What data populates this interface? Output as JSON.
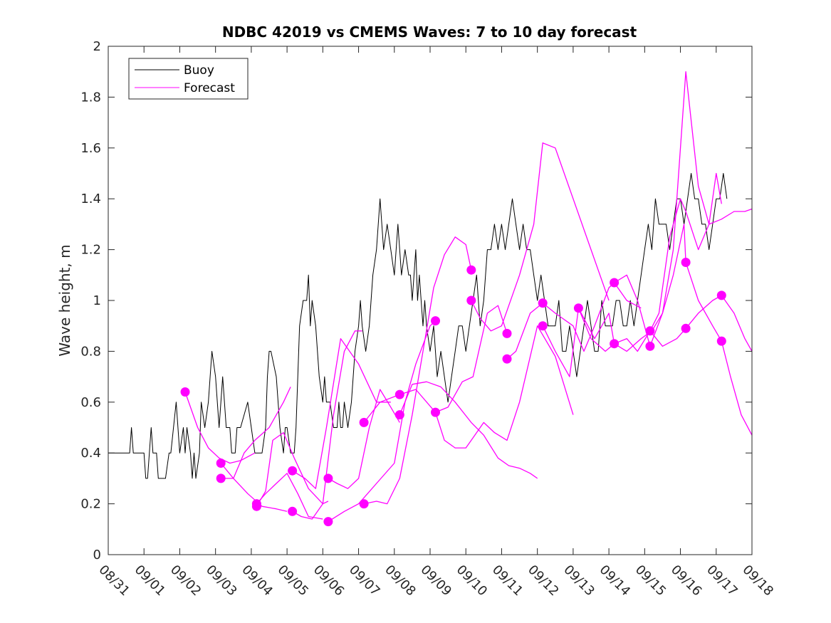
{
  "chart_data": {
    "type": "line",
    "title": "NDBC 42019 vs CMEMS Waves: 7 to 10 day forecast",
    "xlabel": "",
    "ylabel": "Wave height, m",
    "xlim": [
      0,
      18
    ],
    "ylim": [
      0,
      2
    ],
    "x_tick_values": [
      0,
      1,
      2,
      3,
      4,
      5,
      6,
      7,
      8,
      9,
      10,
      11,
      12,
      13,
      14,
      15,
      16,
      17,
      18
    ],
    "x_tick_labels": [
      "08/31",
      "09/01",
      "09/02",
      "09/03",
      "09/04",
      "09/05",
      "09/06",
      "09/07",
      "09/08",
      "09/09",
      "09/10",
      "09/11",
      "09/12",
      "09/13",
      "09/14",
      "09/15",
      "09/16",
      "09/17",
      "09/18"
    ],
    "y_tick_values": [
      0,
      0.2,
      0.4,
      0.6,
      0.8,
      1,
      1.2,
      1.4,
      1.6,
      1.8,
      2
    ],
    "y_tick_labels": [
      "0",
      "0.2",
      "0.4",
      "0.6",
      "0.8",
      "1",
      "1.2",
      "1.4",
      "1.6",
      "1.8",
      "2"
    ],
    "legend": {
      "position": "top-left",
      "entries": [
        {
          "label": "Buoy",
          "color": "#000000"
        },
        {
          "label": "Forecast",
          "color": "#ff00ff"
        }
      ]
    },
    "colors": {
      "buoy": "#000000",
      "forecast": "#ff00ff",
      "axes": "#262626"
    },
    "series": [
      {
        "name": "Buoy",
        "color": "#000000",
        "x": [
          0,
          0.3,
          0.6,
          0.65,
          0.7,
          0.75,
          1.0,
          1.05,
          1.1,
          1.2,
          1.25,
          1.35,
          1.4,
          1.45,
          1.6,
          1.7,
          1.75,
          1.9,
          2.0,
          2.1,
          2.15,
          2.2,
          2.3,
          2.35,
          2.4,
          2.45,
          2.55,
          2.6,
          2.7,
          2.8,
          2.85,
          2.9,
          3.0,
          3.05,
          3.1,
          3.15,
          3.2,
          3.25,
          3.3,
          3.35,
          3.4,
          3.45,
          3.5,
          3.55,
          3.6,
          3.65,
          3.7,
          3.9,
          4.0,
          4.1,
          4.2,
          4.3,
          4.4,
          4.45,
          4.5,
          4.55,
          4.7,
          4.8,
          4.9,
          4.95,
          5.0,
          5.1,
          5.2,
          5.25,
          5.3,
          5.35,
          5.45,
          5.55,
          5.6,
          5.65,
          5.7,
          5.8,
          5.9,
          6.0,
          6.05,
          6.1,
          6.2,
          6.3,
          6.4,
          6.45,
          6.5,
          6.55,
          6.6,
          6.7,
          6.8,
          6.9,
          7.0,
          7.05,
          7.1,
          7.2,
          7.3,
          7.4,
          7.5,
          7.55,
          7.6,
          7.7,
          7.8,
          7.9,
          8.0,
          8.1,
          8.2,
          8.3,
          8.4,
          8.45,
          8.5,
          8.55,
          8.6,
          8.65,
          8.7,
          8.75,
          8.8,
          8.85,
          8.9,
          9.0,
          9.1,
          9.15,
          9.2,
          9.3,
          9.4,
          9.5,
          9.6,
          9.7,
          9.8,
          9.9,
          10.0,
          10.1,
          10.2,
          10.3,
          10.4,
          10.5,
          10.6,
          10.7,
          10.8,
          10.9,
          11.0,
          11.1,
          11.2,
          11.3,
          11.4,
          11.5,
          11.6,
          11.7,
          11.8,
          11.9,
          12.0,
          12.1,
          12.2,
          12.3,
          12.4,
          12.5,
          12.6,
          12.7,
          12.8,
          12.9,
          13.0,
          13.1,
          13.2,
          13.3,
          13.4,
          13.5,
          13.6,
          13.7,
          13.8,
          13.9,
          14.0,
          14.1,
          14.2,
          14.3,
          14.4,
          14.5,
          14.6,
          14.7,
          14.8,
          14.9,
          15.0,
          15.1,
          15.2,
          15.3,
          15.4,
          15.5,
          15.6,
          15.7,
          15.8,
          15.9,
          16.0,
          16.1,
          16.2,
          16.3,
          16.4,
          16.5,
          16.6,
          16.7,
          16.8,
          16.9,
          17.0,
          17.1,
          17.2,
          17.3
        ],
        "y": [
          0.4,
          0.4,
          0.4,
          0.5,
          0.4,
          0.4,
          0.4,
          0.3,
          0.3,
          0.5,
          0.4,
          0.4,
          0.3,
          0.3,
          0.3,
          0.4,
          0.4,
          0.6,
          0.4,
          0.5,
          0.4,
          0.5,
          0.4,
          0.3,
          0.4,
          0.3,
          0.4,
          0.6,
          0.5,
          0.6,
          0.7,
          0.8,
          0.7,
          0.6,
          0.5,
          0.6,
          0.7,
          0.6,
          0.5,
          0.5,
          0.5,
          0.4,
          0.4,
          0.4,
          0.5,
          0.5,
          0.5,
          0.6,
          0.5,
          0.4,
          0.4,
          0.4,
          0.5,
          0.7,
          0.8,
          0.8,
          0.7,
          0.5,
          0.4,
          0.5,
          0.5,
          0.4,
          0.4,
          0.5,
          0.7,
          0.9,
          1.0,
          1.0,
          1.1,
          0.9,
          1.0,
          0.9,
          0.7,
          0.6,
          0.7,
          0.6,
          0.6,
          0.5,
          0.5,
          0.6,
          0.5,
          0.5,
          0.6,
          0.5,
          0.6,
          0.8,
          0.9,
          1.0,
          0.9,
          0.8,
          0.9,
          1.1,
          1.2,
          1.3,
          1.4,
          1.2,
          1.3,
          1.2,
          1.1,
          1.3,
          1.1,
          1.2,
          1.1,
          1.1,
          1.0,
          1.1,
          1.2,
          1.0,
          1.1,
          1.0,
          0.9,
          1.0,
          0.9,
          0.8,
          0.9,
          0.8,
          0.7,
          0.8,
          0.7,
          0.6,
          0.7,
          0.8,
          0.9,
          0.9,
          0.8,
          0.9,
          1.0,
          1.1,
          0.9,
          1.0,
          1.2,
          1.2,
          1.3,
          1.2,
          1.3,
          1.2,
          1.3,
          1.4,
          1.3,
          1.2,
          1.3,
          1.2,
          1.2,
          1.1,
          1.0,
          1.1,
          1.0,
          0.9,
          0.9,
          0.9,
          1.0,
          0.8,
          0.8,
          0.9,
          0.8,
          0.7,
          0.8,
          0.9,
          1.0,
          0.9,
          0.8,
          0.8,
          1.0,
          0.9,
          0.9,
          0.9,
          1.0,
          1.0,
          0.9,
          0.9,
          1.0,
          0.9,
          1.0,
          1.1,
          1.2,
          1.3,
          1.2,
          1.4,
          1.3,
          1.3,
          1.3,
          1.2,
          1.3,
          1.4,
          1.4,
          1.3,
          1.4,
          1.5,
          1.4,
          1.4,
          1.3,
          1.3,
          1.2,
          1.3,
          1.4,
          1.4,
          1.5,
          1.4
        ]
      },
      {
        "name": "Forecast run 1",
        "color": "#ff00ff",
        "x": [
          2.15,
          2.5,
          2.8,
          3.1,
          3.4,
          3.7,
          4.1
        ],
        "y": [
          0.64,
          0.5,
          0.42,
          0.38,
          0.36,
          0.37,
          0.4
        ]
      },
      {
        "name": "Forecast run 2",
        "color": "#ff00ff",
        "x": [
          3.15,
          3.5,
          3.9,
          4.3,
          4.7,
          5.0
        ],
        "y": [
          0.36,
          0.3,
          0.24,
          0.19,
          0.18,
          0.17
        ]
      },
      {
        "name": "Forecast run 3",
        "color": "#ff00ff",
        "x": [
          3.15,
          3.5,
          3.8,
          4.1,
          4.5,
          4.9,
          5.1
        ],
        "y": [
          0.3,
          0.3,
          0.4,
          0.45,
          0.5,
          0.6,
          0.66
        ]
      },
      {
        "name": "Forecast run 4",
        "color": "#ff00ff",
        "x": [
          4.15,
          4.4,
          4.6,
          4.9,
          5.2,
          5.6,
          6.0,
          6.15
        ],
        "y": [
          0.19,
          0.25,
          0.45,
          0.48,
          0.38,
          0.26,
          0.2,
          0.21
        ]
      },
      {
        "name": "Forecast run 5",
        "color": "#ff00ff",
        "x": [
          4.15,
          4.4,
          4.7,
          5.0,
          5.3,
          5.6,
          6.0
        ],
        "y": [
          0.2,
          0.24,
          0.28,
          0.32,
          0.24,
          0.15,
          0.14
        ]
      },
      {
        "name": "Forecast run 6",
        "color": "#ff00ff",
        "x": [
          5.15,
          5.4,
          5.7,
          6.0,
          6.3,
          6.6,
          6.9,
          7.1
        ],
        "y": [
          0.17,
          0.15,
          0.14,
          0.2,
          0.55,
          0.8,
          0.88,
          0.88
        ]
      },
      {
        "name": "Forecast run 7",
        "color": "#ff00ff",
        "x": [
          5.15,
          5.5,
          5.8,
          6.1,
          6.5,
          7.0,
          7.5,
          7.9
        ],
        "y": [
          0.33,
          0.3,
          0.26,
          0.5,
          0.85,
          0.75,
          0.6,
          0.6
        ]
      },
      {
        "name": "Forecast run 8",
        "color": "#ff00ff",
        "x": [
          6.15,
          6.4,
          6.7,
          7.0,
          7.3,
          7.6,
          7.9,
          8.15
        ],
        "y": [
          0.3,
          0.28,
          0.26,
          0.3,
          0.5,
          0.65,
          0.58,
          0.52
        ]
      },
      {
        "name": "Forecast run 9",
        "color": "#ff00ff",
        "x": [
          6.15,
          6.6,
          7.0,
          7.5,
          8.0,
          8.3,
          8.6,
          9.0,
          9.15
        ],
        "y": [
          0.13,
          0.17,
          0.2,
          0.28,
          0.36,
          0.6,
          0.75,
          0.9,
          0.92
        ]
      },
      {
        "name": "Forecast run 10",
        "color": "#ff00ff",
        "x": [
          7.15,
          7.5,
          7.8,
          8.15,
          8.5,
          8.8,
          9.1,
          9.4,
          9.7,
          10.0,
          10.15
        ],
        "y": [
          0.2,
          0.21,
          0.2,
          0.3,
          0.55,
          0.8,
          1.05,
          1.18,
          1.25,
          1.22,
          1.12
        ]
      },
      {
        "name": "Forecast run 11",
        "color": "#ff00ff",
        "x": [
          7.15,
          7.6,
          8.15,
          8.6,
          9.15,
          9.5,
          9.9,
          10.2,
          10.6,
          10.9,
          11.15
        ],
        "y": [
          0.52,
          0.6,
          0.63,
          0.65,
          0.56,
          0.58,
          0.68,
          0.7,
          0.95,
          0.98,
          0.87
        ]
      },
      {
        "name": "Forecast run 12",
        "color": "#ff00ff",
        "x": [
          8.15,
          8.5,
          8.9,
          9.3,
          9.7,
          10.15,
          10.5,
          10.9,
          11.2,
          11.5,
          11.8,
          12.0
        ],
        "y": [
          0.55,
          0.67,
          0.68,
          0.66,
          0.6,
          0.52,
          0.47,
          0.38,
          0.35,
          0.34,
          0.32,
          0.3
        ]
      },
      {
        "name": "Forecast run 13",
        "color": "#ff00ff",
        "x": [
          9.15,
          9.4,
          9.7,
          10.0,
          10.15,
          10.5,
          10.8,
          11.15,
          11.5,
          12.0,
          12.5,
          13.0
        ],
        "y": [
          0.56,
          0.45,
          0.42,
          0.42,
          0.45,
          0.52,
          0.48,
          0.45,
          0.6,
          0.9,
          0.78,
          0.55
        ]
      },
      {
        "name": "Forecast run 14",
        "color": "#ff00ff",
        "x": [
          10.15,
          10.4,
          10.7,
          11.0,
          11.15,
          11.5,
          11.9,
          12.15,
          12.5,
          13.0,
          13.5,
          14.0
        ],
        "y": [
          1.0,
          0.93,
          0.88,
          0.9,
          0.96,
          1.1,
          1.3,
          1.62,
          1.6,
          1.4,
          1.2,
          1.0
        ]
      },
      {
        "name": "Forecast run 15",
        "color": "#ff00ff",
        "x": [
          11.15,
          11.4,
          11.8,
          12.15,
          12.5,
          13.0,
          13.3,
          13.6,
          14.0,
          14.15,
          14.5,
          14.9
        ],
        "y": [
          0.77,
          0.8,
          0.95,
          0.99,
          0.95,
          0.9,
          0.8,
          0.9,
          1.05,
          1.07,
          1.0,
          0.97
        ]
      },
      {
        "name": "Forecast run 16",
        "color": "#ff00ff",
        "x": [
          12.15,
          12.5,
          12.9,
          13.15,
          13.6,
          14.0,
          14.15,
          14.5,
          14.9,
          15.2,
          15.5,
          15.8,
          16.1,
          16.15
        ],
        "y": [
          0.9,
          0.8,
          0.7,
          0.97,
          0.85,
          0.95,
          0.83,
          0.8,
          0.85,
          0.88,
          0.95,
          1.1,
          1.3,
          1.15
        ]
      },
      {
        "name": "Forecast run 17",
        "color": "#ff00ff",
        "x": [
          13.15,
          13.5,
          13.9,
          14.15,
          14.5,
          14.8,
          15.15,
          15.4,
          15.7,
          16.0,
          16.15,
          16.5,
          16.8,
          17.0,
          17.15
        ],
        "y": [
          0.97,
          0.85,
          0.8,
          0.83,
          0.85,
          0.8,
          0.88,
          0.95,
          1.25,
          1.4,
          1.35,
          1.2,
          1.3,
          1.5,
          1.38
        ]
      },
      {
        "name": "Forecast run 18",
        "color": "#ff00ff",
        "x": [
          14.15,
          14.5,
          14.8,
          15.15,
          15.5,
          15.8,
          16.15,
          16.5,
          16.8,
          17.15,
          17.5,
          17.8,
          18.0
        ],
        "y": [
          1.07,
          1.1,
          1.0,
          0.82,
          0.95,
          1.2,
          1.9,
          1.45,
          1.3,
          1.32,
          1.35,
          1.35,
          1.36
        ]
      },
      {
        "name": "Forecast run 19",
        "color": "#ff00ff",
        "x": [
          15.15,
          15.5,
          15.9,
          16.15,
          16.5,
          16.9,
          17.15,
          17.5,
          17.8,
          18.0
        ],
        "y": [
          0.88,
          0.82,
          0.85,
          0.89,
          0.95,
          1.0,
          1.02,
          0.95,
          0.85,
          0.8
        ]
      },
      {
        "name": "Forecast run 20",
        "color": "#ff00ff",
        "x": [
          16.15,
          16.5,
          16.9,
          17.15,
          17.4,
          17.7,
          18.0
        ],
        "y": [
          1.15,
          1.0,
          0.9,
          0.84,
          0.7,
          0.55,
          0.47
        ]
      }
    ],
    "markers": {
      "name": "Forecast initial points",
      "color": "#ff00ff",
      "points": [
        {
          "x": 2.15,
          "y": 0.64
        },
        {
          "x": 3.15,
          "y": 0.36
        },
        {
          "x": 3.15,
          "y": 0.3
        },
        {
          "x": 4.15,
          "y": 0.2
        },
        {
          "x": 4.15,
          "y": 0.19
        },
        {
          "x": 5.15,
          "y": 0.33
        },
        {
          "x": 5.15,
          "y": 0.17
        },
        {
          "x": 6.15,
          "y": 0.3
        },
        {
          "x": 6.15,
          "y": 0.13
        },
        {
          "x": 7.15,
          "y": 0.52
        },
        {
          "x": 7.15,
          "y": 0.2
        },
        {
          "x": 8.15,
          "y": 0.63
        },
        {
          "x": 8.15,
          "y": 0.55
        },
        {
          "x": 9.15,
          "y": 0.92
        },
        {
          "x": 9.15,
          "y": 0.56
        },
        {
          "x": 10.15,
          "y": 1.12
        },
        {
          "x": 10.15,
          "y": 1.0
        },
        {
          "x": 11.15,
          "y": 0.87
        },
        {
          "x": 11.15,
          "y": 0.77
        },
        {
          "x": 12.15,
          "y": 0.99
        },
        {
          "x": 12.15,
          "y": 0.9
        },
        {
          "x": 13.15,
          "y": 0.97
        },
        {
          "x": 14.15,
          "y": 1.07
        },
        {
          "x": 14.15,
          "y": 0.83
        },
        {
          "x": 15.15,
          "y": 0.88
        },
        {
          "x": 15.15,
          "y": 0.82
        },
        {
          "x": 16.15,
          "y": 1.15
        },
        {
          "x": 16.15,
          "y": 0.89
        },
        {
          "x": 17.15,
          "y": 1.02
        },
        {
          "x": 17.15,
          "y": 0.84
        }
      ]
    }
  }
}
